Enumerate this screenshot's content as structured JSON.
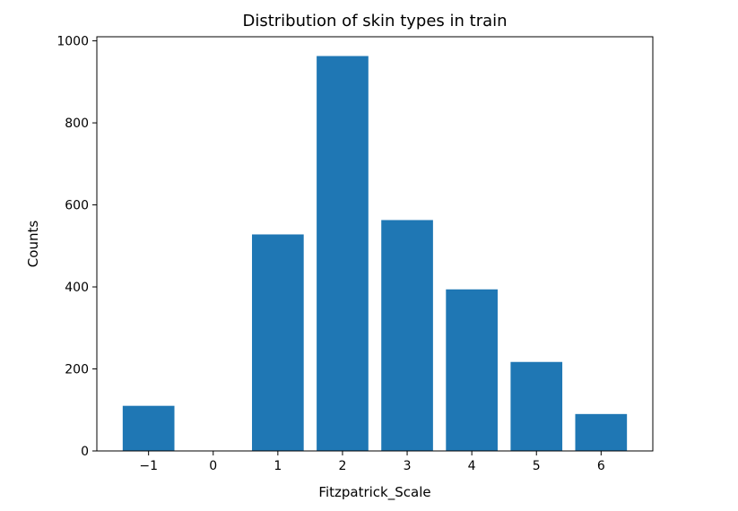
{
  "chart_data": {
    "type": "bar",
    "title": "Distribution of skin types in train",
    "xlabel": "Fitzpatrick_Scale",
    "ylabel": "Counts",
    "x": [
      -1,
      1,
      2,
      3,
      4,
      5,
      6
    ],
    "values": [
      110,
      528,
      963,
      563,
      394,
      217,
      90
    ],
    "xticks": [
      -1,
      0,
      1,
      2,
      3,
      4,
      5,
      6
    ],
    "xtick_labels": [
      "−1",
      "0",
      "1",
      "2",
      "3",
      "4",
      "5",
      "6"
    ],
    "yticks": [
      0,
      200,
      400,
      600,
      800,
      1000
    ],
    "xlim": [
      -1.8,
      6.8
    ],
    "ylim": [
      0,
      1010
    ],
    "bar_color": "#1f77b4",
    "grid": false,
    "legend": false
  }
}
